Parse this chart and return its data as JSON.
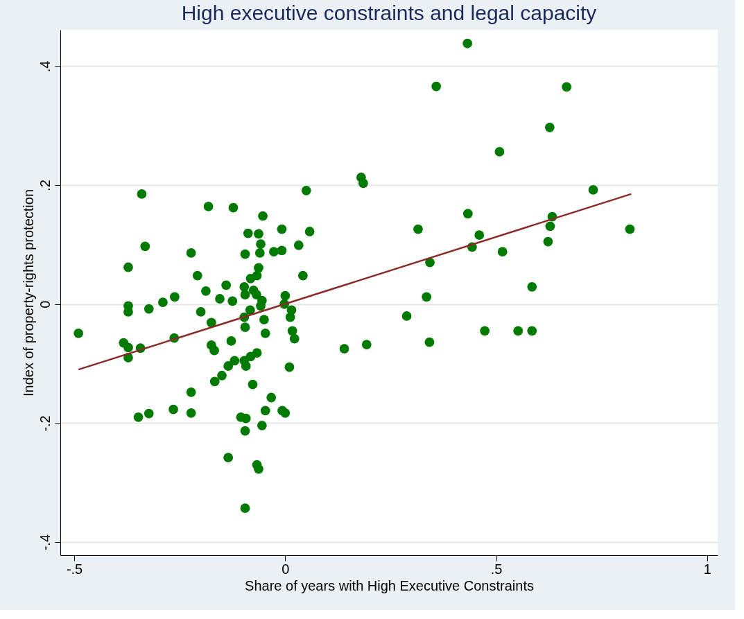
{
  "chart_data": {
    "type": "scatter",
    "title": "High executive constraints and legal capacity",
    "xlabel": "Share of years with High Executive Constraints",
    "ylabel": "Index of property-rights protection",
    "xlim": [
      -0.533,
      1.025
    ],
    "ylim": [
      -0.422,
      0.461
    ],
    "xticks": [
      {
        "value": -0.5,
        "label": "-.5"
      },
      0,
      {
        "value": 0.5,
        "label": ".5"
      },
      1
    ],
    "yticks": [
      {
        "value": -0.4,
        "label": "-.4"
      },
      {
        "value": -0.2,
        "label": "-.2"
      },
      0,
      {
        "value": 0.2,
        "label": ".2"
      },
      {
        "value": 0.4,
        "label": ".4"
      }
    ],
    "grid": "y",
    "marker": "circle",
    "series": [
      {
        "color": "#007a00",
        "x": [
          -0.49,
          -0.383,
          -0.372,
          -0.372,
          -0.343,
          -0.263,
          -0.372,
          -0.372,
          -0.372,
          -0.323,
          -0.29,
          -0.262,
          -0.34,
          -0.332,
          -0.223,
          -0.223,
          -0.265,
          -0.223,
          -0.323,
          -0.348,
          0.05,
          -0.182,
          -0.123,
          -0.053,
          -0.088,
          -0.063,
          -0.058,
          -0.06,
          -0.008,
          0.058,
          -0.095,
          -0.027,
          -0.008,
          0.032,
          -0.208,
          -0.063,
          -0.067,
          0.042,
          -0.188,
          -0.14,
          -0.155,
          -0.125,
          -0.082,
          -0.097,
          -0.095,
          -0.075,
          -0.068,
          -0.055,
          0.0,
          -0.2,
          -0.175,
          -0.097,
          -0.095,
          -0.05,
          -0.047,
          -0.083,
          -0.058,
          -0.002,
          0.015,
          0.012,
          0.017,
          0.022,
          -0.175,
          -0.168,
          -0.128,
          -0.135,
          -0.12,
          -0.097,
          -0.093,
          -0.082,
          -0.067,
          -0.167,
          -0.15,
          -0.077,
          0.01,
          -0.105,
          -0.093,
          -0.095,
          -0.055,
          -0.047,
          -0.033,
          -0.007,
          0.0,
          -0.135,
          -0.067,
          -0.063,
          -0.095,
          0.432,
          0.358,
          0.667,
          0.627,
          0.508,
          0.18,
          0.185,
          0.73,
          0.433,
          0.633,
          0.628,
          0.315,
          0.817,
          0.46,
          0.443,
          0.623,
          0.515,
          0.343,
          0.335,
          0.585,
          0.288,
          0.473,
          0.552,
          0.585,
          0.342,
          0.193,
          0.14
        ],
        "values": [
          -0.049,
          -0.065,
          -0.073,
          -0.09,
          -0.074,
          -0.057,
          0.062,
          -0.003,
          -0.013,
          -0.008,
          0.003,
          0.012,
          0.185,
          0.097,
          0.086,
          -0.148,
          -0.177,
          -0.183,
          -0.184,
          -0.19,
          0.191,
          0.164,
          0.162,
          0.148,
          0.119,
          0.118,
          0.101,
          0.086,
          0.126,
          0.122,
          0.084,
          0.088,
          0.09,
          0.099,
          0.048,
          0.061,
          0.048,
          0.048,
          0.022,
          0.032,
          0.009,
          0.005,
          0.043,
          0.029,
          0.016,
          0.023,
          0.016,
          0.006,
          0.014,
          -0.013,
          -0.031,
          -0.022,
          -0.039,
          -0.026,
          -0.049,
          -0.01,
          -0.003,
          0.0,
          -0.01,
          -0.022,
          -0.045,
          -0.058,
          -0.069,
          -0.078,
          -0.062,
          -0.104,
          -0.095,
          -0.095,
          -0.104,
          -0.088,
          -0.082,
          -0.13,
          -0.12,
          -0.135,
          -0.106,
          -0.19,
          -0.192,
          -0.213,
          -0.204,
          -0.179,
          -0.157,
          -0.179,
          -0.183,
          -0.258,
          -0.27,
          -0.277,
          -0.343,
          0.438,
          0.366,
          0.365,
          0.297,
          0.256,
          0.213,
          0.203,
          0.192,
          0.152,
          0.147,
          0.131,
          0.126,
          0.126,
          0.116,
          0.096,
          0.105,
          0.088,
          0.07,
          0.012,
          0.029,
          -0.02,
          -0.045,
          -0.045,
          -0.045,
          -0.064,
          -0.068,
          -0.075
        ]
      },
      {
        "type": "line",
        "color": "#8b2b2b",
        "marker": "none",
        "x": [
          -0.49,
          0.82
        ],
        "values": [
          -0.11,
          0.185
        ]
      }
    ]
  }
}
